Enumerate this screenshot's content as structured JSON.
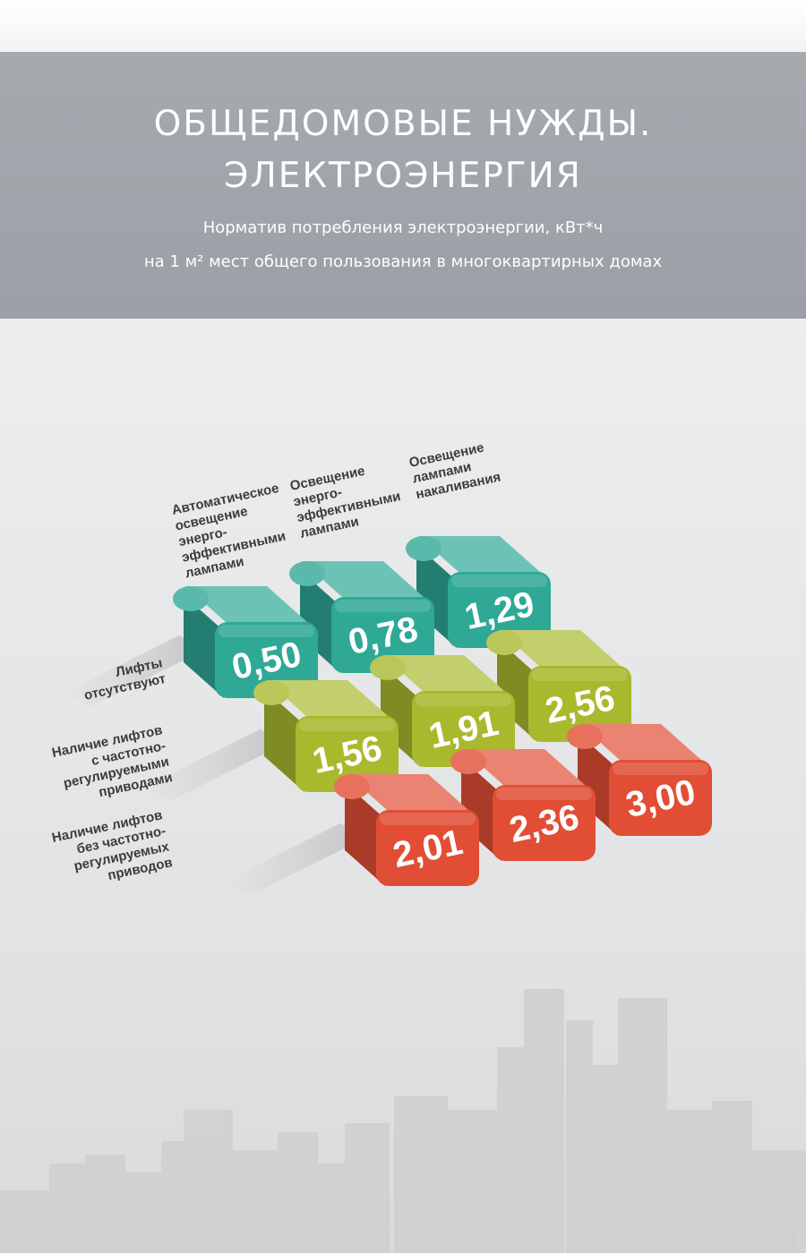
{
  "header": {
    "title": "ОБЩЕДОМОВЫЕ НУЖДЫ.\nЭЛЕКТРОЭНЕРГИЯ",
    "subtitle": "Норматив потребления электроэнергии, кВт*ч\nна 1 м² мест общего пользования в многоквартирных домах"
  },
  "chart_data": {
    "type": "table",
    "columns": [
      [
        "Автоматическое",
        "освещение",
        "энерго-",
        "эффективными",
        "лампами"
      ],
      [
        "Освещение",
        "энерго-",
        "эффективными",
        "лампами"
      ],
      [
        "Освещение",
        "лампами",
        "накаливания"
      ]
    ],
    "rows": [
      [
        "Лифты",
        "отсутствуют"
      ],
      [
        "Наличие лифтов",
        "с частотно-",
        "регулируемыми",
        "приводами"
      ],
      [
        "Наличие лифтов",
        "без частотно-",
        "регулируемых",
        "приводов"
      ]
    ],
    "values": [
      [
        "0,50",
        "0,78",
        "1,29"
      ],
      [
        "1,56",
        "1,91",
        "2,56"
      ],
      [
        "2,01",
        "2,36",
        "3,00"
      ]
    ],
    "row_colors": [
      "#2fa896",
      "#a9b92e",
      "#e14e35"
    ]
  }
}
